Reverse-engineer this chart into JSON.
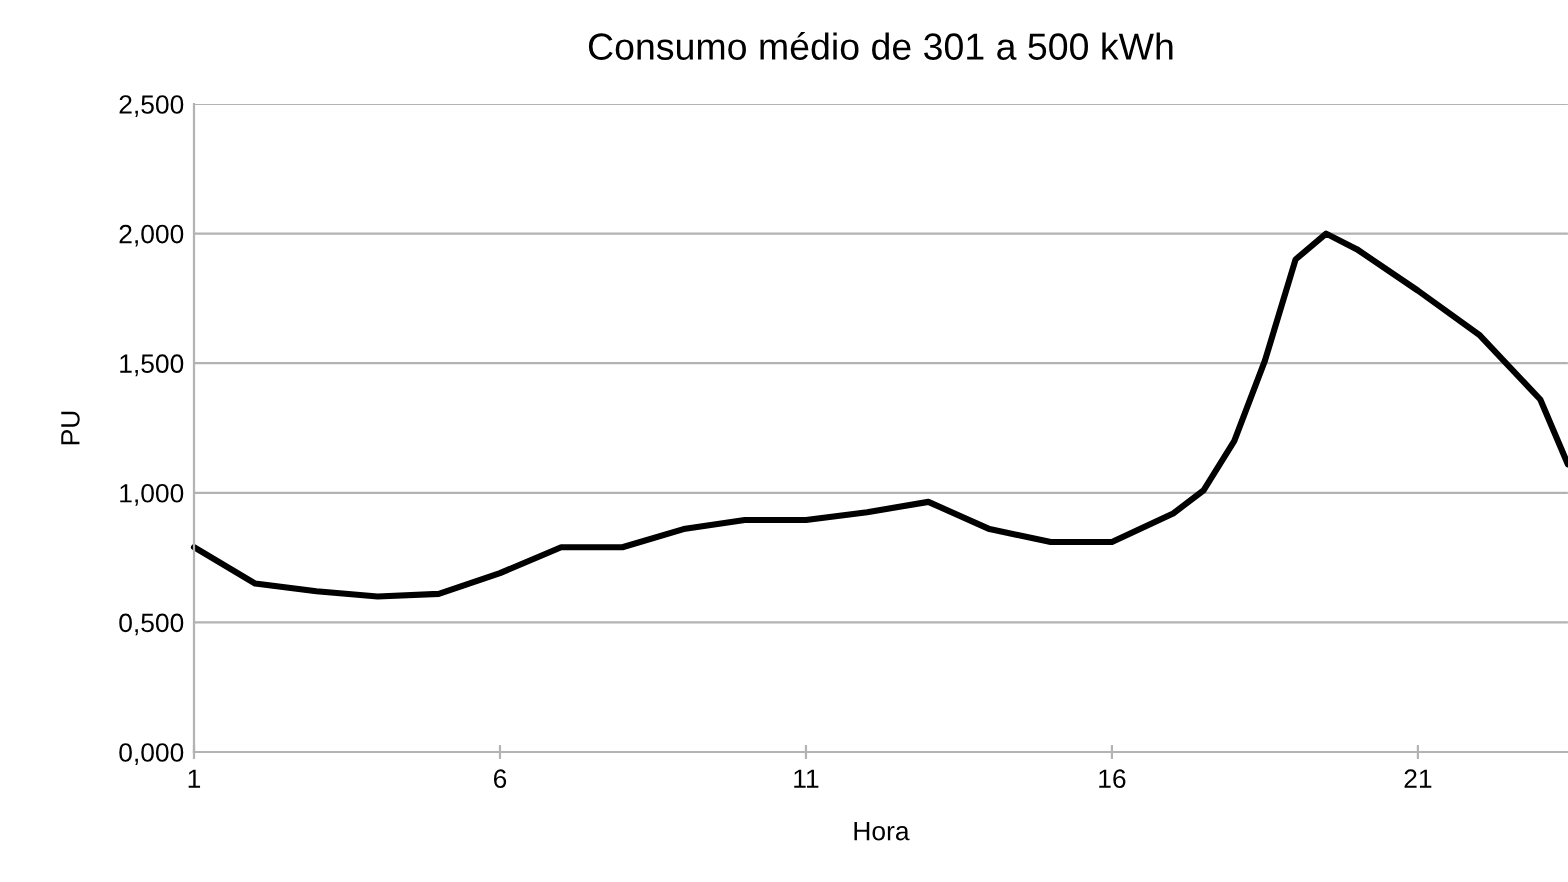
{
  "chart_data": {
    "type": "line",
    "title": "Consumo médio de 301 a 500 kWh",
    "xlabel": "Hora",
    "ylabel": "PU",
    "x": [
      1,
      2,
      3,
      4,
      5,
      6,
      7,
      8,
      9,
      10,
      11,
      12,
      13,
      14,
      15,
      16,
      17,
      17.5,
      18,
      18.5,
      19,
      19.5,
      20,
      21,
      22,
      23,
      23.45
    ],
    "series": [
      {
        "color": "#000000",
        "values": [
          0.79,
          0.65,
          0.62,
          0.6,
          0.61,
          0.69,
          0.79,
          0.79,
          0.86,
          0.895,
          0.895,
          0.925,
          0.965,
          0.86,
          0.81,
          0.81,
          0.92,
          1.01,
          1.2,
          1.51,
          1.9,
          2.0,
          1.94,
          1.78,
          1.61,
          1.36,
          1.11
        ]
      }
    ],
    "xlim": [
      1,
      23.45
    ],
    "xticks": [
      1,
      6,
      11,
      16,
      21
    ],
    "ylim": [
      0,
      2.5
    ],
    "yticks": [
      {
        "value": 0,
        "label": "0,000"
      },
      {
        "value": 0.5,
        "label": "0,500"
      },
      {
        "value": 1,
        "label": "1,000"
      },
      {
        "value": 1.5,
        "label": "1,500"
      },
      {
        "value": 2,
        "label": "2,000"
      },
      {
        "value": 2.5,
        "label": "2,500"
      }
    ],
    "grid": "y",
    "legend": false,
    "marker": "none",
    "line_style": "solid"
  }
}
